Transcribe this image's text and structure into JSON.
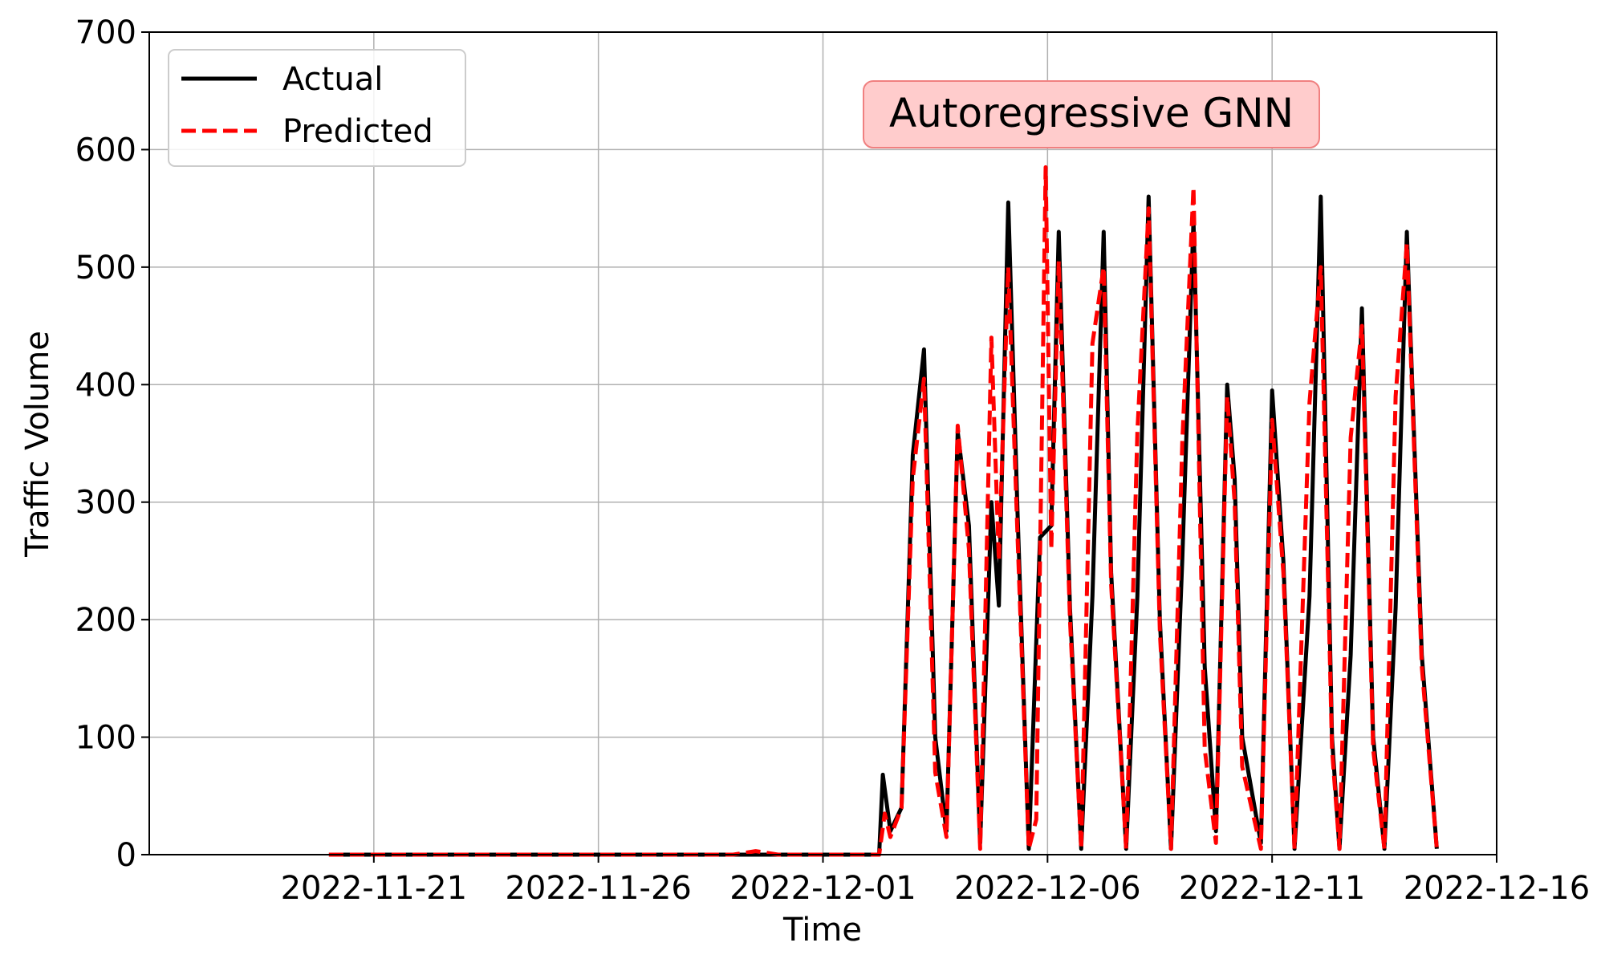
{
  "chart_data": {
    "type": "line",
    "annotation": "Autoregressive GNN",
    "xlabel": "Time",
    "ylabel": "Traffic Volume",
    "xlim": [
      "2022-11-16",
      "2022-12-16"
    ],
    "ylim": [
      0,
      700
    ],
    "yticks": [
      0,
      100,
      200,
      300,
      400,
      500,
      600,
      700
    ],
    "xticks": [
      "2022-11-21",
      "2022-11-26",
      "2022-12-01",
      "2022-12-06",
      "2022-12-11",
      "2022-12-16"
    ],
    "grid": true,
    "legend_position": "top-left",
    "series": [
      {
        "name": "Actual",
        "color": "#000000",
        "style": "solid",
        "points": [
          [
            "2022-11-20",
            0
          ],
          [
            "2022-11-25",
            0
          ],
          [
            "2022-11-30",
            0
          ],
          [
            "2022-12-02 06:00",
            0
          ],
          [
            "2022-12-02 08:00",
            68
          ],
          [
            "2022-12-02 12:00",
            20
          ],
          [
            "2022-12-02 18:00",
            40
          ],
          [
            "2022-12-03 00:00",
            340
          ],
          [
            "2022-12-03 06:00",
            430
          ],
          [
            "2022-12-03 12:00",
            100
          ],
          [
            "2022-12-03 18:00",
            20
          ],
          [
            "2022-12-04 00:00",
            360
          ],
          [
            "2022-12-04 06:00",
            280
          ],
          [
            "2022-12-04 12:00",
            10
          ],
          [
            "2022-12-04 18:00",
            300
          ],
          [
            "2022-12-04 22:00",
            212
          ],
          [
            "2022-12-05 03:00",
            555
          ],
          [
            "2022-12-05 08:00",
            290
          ],
          [
            "2022-12-05 14:00",
            5
          ],
          [
            "2022-12-05 20:00",
            270
          ],
          [
            "2022-12-06 02:00",
            280
          ],
          [
            "2022-12-06 06:00",
            530
          ],
          [
            "2022-12-06 12:00",
            210
          ],
          [
            "2022-12-06 18:00",
            5
          ],
          [
            "2022-12-07 00:00",
            220
          ],
          [
            "2022-12-07 06:00",
            530
          ],
          [
            "2022-12-07 10:00",
            240
          ],
          [
            "2022-12-07 18:00",
            5
          ],
          [
            "2022-12-08 00:00",
            220
          ],
          [
            "2022-12-08 06:00",
            560
          ],
          [
            "2022-12-08 12:00",
            200
          ],
          [
            "2022-12-08 18:00",
            5
          ],
          [
            "2022-12-09 00:00",
            250
          ],
          [
            "2022-12-09 06:00",
            540
          ],
          [
            "2022-12-09 12:00",
            160
          ],
          [
            "2022-12-09 18:00",
            20
          ],
          [
            "2022-12-10 00:00",
            400
          ],
          [
            "2022-12-10 04:00",
            320
          ],
          [
            "2022-12-10 08:00",
            100
          ],
          [
            "2022-12-10 18:00",
            10
          ],
          [
            "2022-12-11 00:00",
            395
          ],
          [
            "2022-12-11 06:00",
            250
          ],
          [
            "2022-12-11 12:00",
            5
          ],
          [
            "2022-12-11 20:00",
            220
          ],
          [
            "2022-12-12 02:00",
            560
          ],
          [
            "2022-12-12 08:00",
            100
          ],
          [
            "2022-12-12 12:00",
            5
          ],
          [
            "2022-12-12 18:00",
            170
          ],
          [
            "2022-12-13 00:00",
            465
          ],
          [
            "2022-12-13 06:00",
            100
          ],
          [
            "2022-12-13 12:00",
            5
          ],
          [
            "2022-12-13 18:00",
            210
          ],
          [
            "2022-12-14 00:00",
            530
          ],
          [
            "2022-12-14 08:00",
            170
          ],
          [
            "2022-12-14 16:00",
            5
          ]
        ]
      },
      {
        "name": "Predicted",
        "color": "#ff0000",
        "style": "dashed",
        "points": [
          [
            "2022-11-20",
            0
          ],
          [
            "2022-11-29 00:00",
            0
          ],
          [
            "2022-11-29 12:00",
            3
          ],
          [
            "2022-11-30 00:00",
            0
          ],
          [
            "2022-12-02 06:00",
            0
          ],
          [
            "2022-12-02 09:00",
            35
          ],
          [
            "2022-12-02 12:00",
            15
          ],
          [
            "2022-12-02 18:00",
            40
          ],
          [
            "2022-12-03 00:00",
            320
          ],
          [
            "2022-12-03 06:00",
            405
          ],
          [
            "2022-12-03 12:00",
            70
          ],
          [
            "2022-12-03 18:00",
            15
          ],
          [
            "2022-12-04 00:00",
            365
          ],
          [
            "2022-12-04 06:00",
            260
          ],
          [
            "2022-12-04 12:00",
            5
          ],
          [
            "2022-12-04 18:00",
            440
          ],
          [
            "2022-12-04 22:00",
            250
          ],
          [
            "2022-12-05 03:00",
            500
          ],
          [
            "2022-12-05 08:00",
            270
          ],
          [
            "2022-12-05 14:00",
            5
          ],
          [
            "2022-12-05 18:00",
            30
          ],
          [
            "2022-12-05 23:00",
            585
          ],
          [
            "2022-12-06 02:00",
            260
          ],
          [
            "2022-12-06 06:00",
            505
          ],
          [
            "2022-12-06 12:00",
            200
          ],
          [
            "2022-12-06 18:00",
            5
          ],
          [
            "2022-12-07 00:00",
            435
          ],
          [
            "2022-12-07 06:00",
            500
          ],
          [
            "2022-12-07 10:00",
            230
          ],
          [
            "2022-12-07 18:00",
            5
          ],
          [
            "2022-12-08 00:00",
            360
          ],
          [
            "2022-12-08 06:00",
            550
          ],
          [
            "2022-12-08 12:00",
            190
          ],
          [
            "2022-12-08 18:00",
            5
          ],
          [
            "2022-12-09 00:00",
            350
          ],
          [
            "2022-12-09 06:00",
            568
          ],
          [
            "2022-12-09 12:00",
            90
          ],
          [
            "2022-12-09 18:00",
            10
          ],
          [
            "2022-12-10 00:00",
            390
          ],
          [
            "2022-12-10 04:00",
            300
          ],
          [
            "2022-12-10 08:00",
            75
          ],
          [
            "2022-12-10 18:00",
            5
          ],
          [
            "2022-12-11 00:00",
            370
          ],
          [
            "2022-12-11 06:00",
            240
          ],
          [
            "2022-12-11 12:00",
            5
          ],
          [
            "2022-12-11 20:00",
            385
          ],
          [
            "2022-12-12 02:00",
            500
          ],
          [
            "2022-12-12 08:00",
            90
          ],
          [
            "2022-12-12 12:00",
            5
          ],
          [
            "2022-12-12 18:00",
            355
          ],
          [
            "2022-12-13 00:00",
            450
          ],
          [
            "2022-12-13 06:00",
            90
          ],
          [
            "2022-12-13 12:00",
            5
          ],
          [
            "2022-12-13 18:00",
            390
          ],
          [
            "2022-12-14 00:00",
            520
          ],
          [
            "2022-12-14 08:00",
            160
          ],
          [
            "2022-12-14 16:00",
            5
          ]
        ]
      }
    ]
  }
}
